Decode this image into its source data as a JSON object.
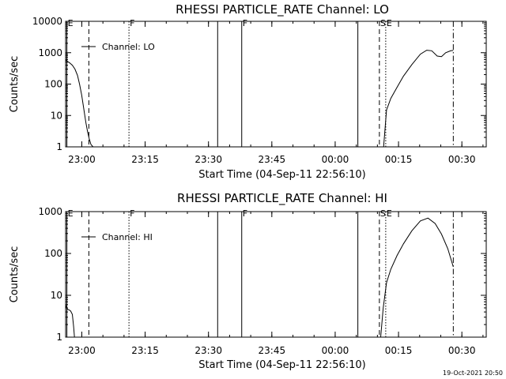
{
  "footer": {
    "timestamp": "19-Oct-2021 20:50"
  },
  "chart_data": [
    {
      "type": "line",
      "title": "RHESSI PARTICLE_RATE Channel: LO",
      "xlabel": "Start Time (04-Sep-11 22:56:10)",
      "ylabel": "Counts/sec",
      "yscale": "log",
      "xlim_minutes": [
        0,
        99.6
      ],
      "ylim": [
        1,
        10000
      ],
      "x_ticks": [
        {
          "label": "23:00",
          "minutes": 3.83
        },
        {
          "label": "23:15",
          "minutes": 18.83
        },
        {
          "label": "23:30",
          "minutes": 33.83
        },
        {
          "label": "23:45",
          "minutes": 48.83
        },
        {
          "label": "00:00",
          "minutes": 63.83
        },
        {
          "label": "00:15",
          "minutes": 78.83
        },
        {
          "label": "00:30",
          "minutes": 93.83
        }
      ],
      "y_ticks": [
        {
          "label": "1",
          "value": 1
        },
        {
          "label": "10",
          "value": 10
        },
        {
          "label": "100",
          "value": 100
        },
        {
          "label": "1000",
          "value": 1000
        },
        {
          "label": "10000",
          "value": 10000
        }
      ],
      "legend": {
        "label": "Channel: LO",
        "placement": "top-left"
      },
      "markers": [
        {
          "minutes": 0.3,
          "style": "solid",
          "label": "E"
        },
        {
          "minutes": 5.5,
          "style": "dashed",
          "label": ""
        },
        {
          "minutes": 15.0,
          "style": "dotted",
          "label": "F"
        },
        {
          "minutes": 36.0,
          "style": "solid",
          "label": ""
        },
        {
          "minutes": 41.7,
          "style": "solid",
          "label": "F"
        },
        {
          "minutes": 69.2,
          "style": "solid",
          "label": ""
        },
        {
          "minutes": 74.3,
          "style": "dashed",
          "label": "S"
        },
        {
          "minutes": 75.8,
          "style": "dotted",
          "label": "E"
        },
        {
          "minutes": 91.8,
          "style": "dashdot",
          "label": ""
        }
      ],
      "series": [
        {
          "segments": [
            {
              "x": [
                0,
                0.5,
                1.0,
                1.6,
                2.2,
                2.8,
                3.3,
                3.8,
                4.3,
                4.8,
                5.2,
                5.6,
                6.0,
                6.5
              ],
              "y": [
                580,
                520,
                470,
                400,
                300,
                190,
                100,
                45,
                16,
                6,
                3,
                1.8,
                1.2,
                1
              ]
            },
            {
              "x": [
                75.3,
                76.0,
                77.0,
                78.5,
                80.0,
                82.0,
                84.0,
                85.5,
                86.7,
                88.0,
                89.0,
                90.0,
                91.2,
                91.8
              ],
              "y": [
                1,
                15,
                35,
                80,
                180,
                420,
                900,
                1200,
                1150,
                780,
                750,
                1000,
                1150,
                1180
              ]
            }
          ]
        }
      ]
    },
    {
      "type": "line",
      "title": "RHESSI PARTICLE_RATE Channel: HI",
      "xlabel": "Start Time (04-Sep-11 22:56:10)",
      "ylabel": "Counts/sec",
      "yscale": "log",
      "xlim_minutes": [
        0,
        99.6
      ],
      "ylim": [
        1,
        1000
      ],
      "x_ticks": [
        {
          "label": "23:00",
          "minutes": 3.83
        },
        {
          "label": "23:15",
          "minutes": 18.83
        },
        {
          "label": "23:30",
          "minutes": 33.83
        },
        {
          "label": "23:45",
          "minutes": 48.83
        },
        {
          "label": "00:00",
          "minutes": 63.83
        },
        {
          "label": "00:15",
          "minutes": 78.83
        },
        {
          "label": "00:30",
          "minutes": 93.83
        }
      ],
      "y_ticks": [
        {
          "label": "1",
          "value": 1
        },
        {
          "label": "10",
          "value": 10
        },
        {
          "label": "100",
          "value": 100
        },
        {
          "label": "1000",
          "value": 1000
        }
      ],
      "legend": {
        "label": "Channel: HI",
        "placement": "top-left"
      },
      "markers": [
        {
          "minutes": 0.3,
          "style": "solid",
          "label": "E"
        },
        {
          "minutes": 5.5,
          "style": "dashed",
          "label": ""
        },
        {
          "minutes": 15.0,
          "style": "dotted",
          "label": "F"
        },
        {
          "minutes": 36.0,
          "style": "solid",
          "label": ""
        },
        {
          "minutes": 41.7,
          "style": "solid",
          "label": "F"
        },
        {
          "minutes": 69.2,
          "style": "solid",
          "label": ""
        },
        {
          "minutes": 74.3,
          "style": "dashed",
          "label": "S"
        },
        {
          "minutes": 75.8,
          "style": "dotted",
          "label": "E"
        },
        {
          "minutes": 91.8,
          "style": "dashdot",
          "label": ""
        }
      ],
      "series": [
        {
          "segments": [
            {
              "x": [
                0,
                0.2,
                0.5,
                0.8,
                1.2,
                1.6,
                1.9,
                2.1
              ],
              "y": [
                6,
                5,
                4.6,
                4.5,
                4.2,
                3.5,
                1.8,
                1
              ]
            },
            {
              "x": [
                74.6,
                75.2,
                76.0,
                77.0,
                78.5,
                80.0,
                82.0,
                84.0,
                85.8,
                87.5,
                89.0,
                90.5,
                91.8
              ],
              "y": [
                1,
                5,
                20,
                42,
                90,
                170,
                350,
                600,
                700,
                520,
                290,
                130,
                48
              ]
            }
          ]
        }
      ]
    }
  ]
}
